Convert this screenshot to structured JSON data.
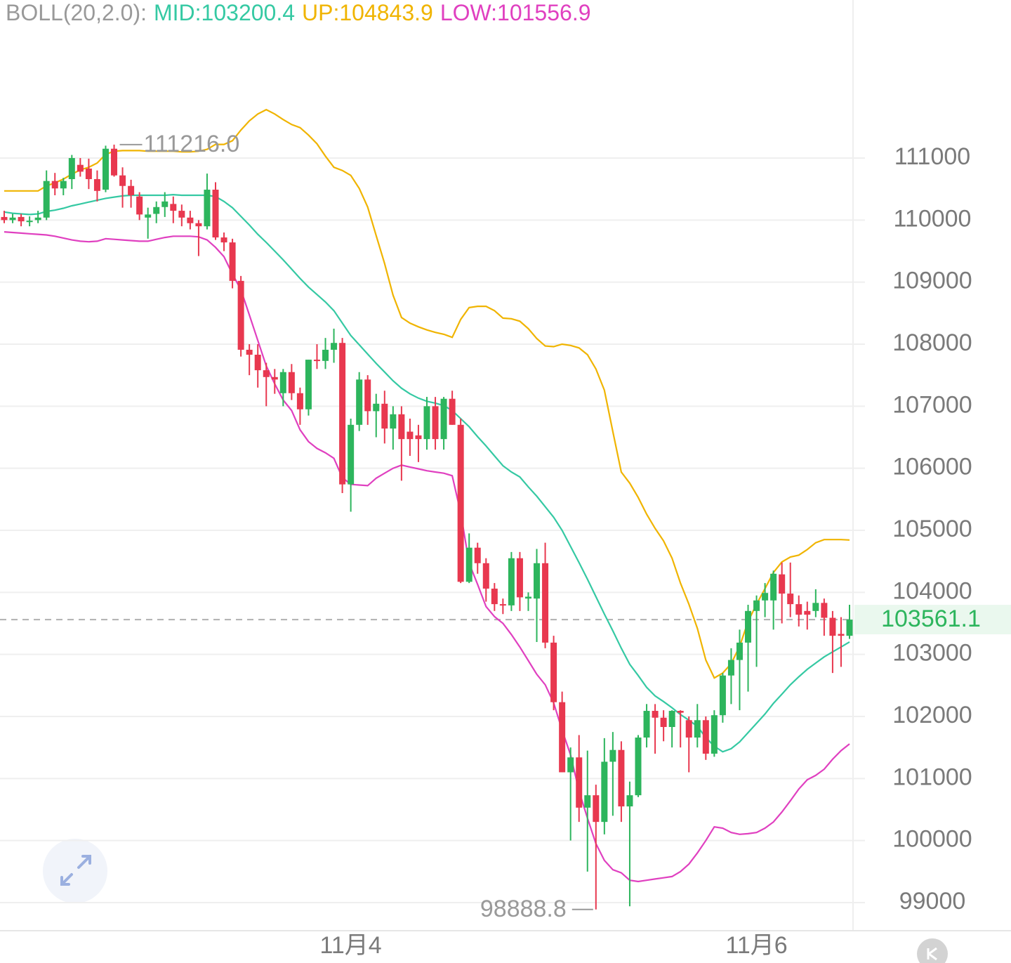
{
  "chart_data": {
    "type": "candlestick",
    "title": "BOLL(20,2.0):",
    "categories": [
      null,
      null,
      null,
      null,
      null,
      null,
      null,
      null,
      null,
      null,
      null,
      null,
      null,
      null,
      null,
      null,
      null,
      null,
      null,
      null,
      null,
      null,
      null,
      null,
      null,
      null,
      null,
      null,
      null,
      null,
      null,
      null,
      null,
      null,
      null,
      null,
      null,
      null,
      null,
      null,
      null,
      "11月4",
      null,
      null,
      null,
      null,
      null,
      null,
      null,
      null,
      null,
      null,
      null,
      null,
      null,
      null,
      null,
      null,
      null,
      null,
      null,
      null,
      null,
      null,
      null,
      null,
      null,
      null,
      null,
      null,
      null,
      null,
      null,
      null,
      null,
      null,
      null,
      null,
      null,
      null,
      null,
      null,
      null,
      null,
      null,
      null,
      null,
      null,
      null,
      "11月6",
      null,
      null,
      null,
      null,
      null,
      null,
      null,
      null,
      null,
      null,
      null
    ],
    "open": [
      110050,
      110000,
      110050,
      109980,
      110000,
      110040,
      110630,
      110510,
      110660,
      110890,
      110830,
      110660,
      110490,
      111150,
      110720,
      110550,
      110380,
      110040,
      110100,
      110210,
      110260,
      110150,
      110040,
      109950,
      109900,
      110490,
      109720,
      109640,
      109020,
      107910,
      107830,
      107580,
      107470,
      107210,
      107550,
      107210,
      106950,
      107750,
      107730,
      107910,
      108020,
      105740,
      106700,
      107430,
      106920,
      107040,
      106640,
      106870,
      106590,
      106530,
      106470,
      107000,
      106470,
      107120,
      106700,
      104170,
      104720,
      104470,
      104060,
      103810,
      103790,
      104550,
      103900,
      103900,
      104470,
      103190,
      102230,
      101100,
      101340,
      100530,
      100730,
      100300,
      101270,
      101460,
      100550,
      100730,
      101660,
      102090,
      101980,
      101830,
      102090,
      101940,
      101660,
      101940,
      101400,
      102020,
      102660,
      102910,
      103190,
      103700,
      103870,
      103870,
      104290,
      103980,
      103810,
      103700,
      103700,
      103830,
      103590,
      103330,
      103300
    ],
    "high": [
      110150,
      110100,
      110100,
      110060,
      110150,
      110800,
      110760,
      110680,
      111050,
      111000,
      110990,
      110800,
      111200,
      111216,
      110850,
      110650,
      110450,
      110200,
      110300,
      110450,
      110380,
      110250,
      110150,
      110000,
      110750,
      110610,
      109800,
      109700,
      109100,
      108000,
      108000,
      107700,
      107600,
      107600,
      107680,
      107300,
      107750,
      108000,
      108100,
      108250,
      108100,
      106800,
      107550,
      107500,
      107200,
      107250,
      107000,
      107000,
      106800,
      106700,
      107150,
      107150,
      107150,
      107250,
      106800,
      104950,
      104800,
      104550,
      104150,
      103900,
      104650,
      104650,
      104000,
      104700,
      104800,
      103300,
      102400,
      101500,
      101700,
      101450,
      100900,
      101650,
      101750,
      101600,
      100950,
      101700,
      102200,
      102200,
      102100,
      102100,
      102100,
      102000,
      102200,
      102000,
      102100,
      102700,
      103100,
      103400,
      103800,
      103950,
      104150,
      104350,
      104480,
      104480,
      103950,
      103850,
      104050,
      103900,
      103700,
      103600,
      103800
    ],
    "low": [
      109950,
      109950,
      109900,
      109900,
      109950,
      110000,
      110400,
      110400,
      110500,
      110700,
      110500,
      110300,
      110450,
      110700,
      110200,
      110200,
      110000,
      109700,
      109950,
      110050,
      109950,
      109900,
      109850,
      109420,
      109850,
      109680,
      109500,
      108900,
      107800,
      107500,
      107300,
      107000,
      107200,
      107000,
      107100,
      106700,
      106850,
      107600,
      107600,
      107700,
      105600,
      105300,
      106600,
      106700,
      106500,
      106400,
      106300,
      105800,
      106200,
      106100,
      106300,
      106300,
      106300,
      106700,
      104150,
      104150,
      104300,
      103850,
      103700,
      103650,
      103700,
      103700,
      103700,
      103200,
      103100,
      102100,
      101100,
      100000,
      100300,
      99500,
      98888.8,
      100100,
      100400,
      100300,
      98940,
      100700,
      101500,
      101400,
      101600,
      101500,
      101500,
      101100,
      101500,
      101300,
      101350,
      101900,
      102200,
      102100,
      102400,
      102800,
      103600,
      103400,
      103500,
      103600,
      103450,
      103400,
      103600,
      103300,
      102700,
      102800,
      103250
    ],
    "close": [
      110000,
      110040,
      109980,
      109990,
      110040,
      110630,
      110510,
      110630,
      111000,
      110780,
      110660,
      110470,
      111150,
      110720,
      110550,
      110400,
      110090,
      110090,
      110210,
      110300,
      110150,
      110040,
      109950,
      109900,
      110490,
      109720,
      109640,
      109020,
      107910,
      107830,
      107580,
      107470,
      107430,
      107550,
      107210,
      106950,
      107750,
      107730,
      107910,
      108020,
      105740,
      106700,
      107430,
      106920,
      107040,
      106640,
      106870,
      106470,
      106470,
      106470,
      107000,
      106470,
      107120,
      106700,
      104170,
      104720,
      104470,
      104060,
      103810,
      103790,
      104550,
      103920,
      103930,
      104470,
      103190,
      102230,
      101100,
      101340,
      100530,
      100730,
      100300,
      101270,
      101460,
      100550,
      100730,
      101660,
      102090,
      101980,
      101830,
      102090,
      102060,
      101660,
      101940,
      101400,
      102020,
      102660,
      102910,
      103190,
      103700,
      103870,
      103990,
      104300,
      103980,
      103810,
      103640,
      103640,
      103830,
      103590,
      103300,
      103300,
      103561.1
    ],
    "up_color": "#2db55d",
    "down_color": "#e8384f",
    "series": [
      {
        "name": "MID:103200.4",
        "color": "#35c9a3",
        "values": [
          110130,
          110110,
          110100,
          110090,
          110100,
          110140,
          110160,
          110190,
          110230,
          110260,
          110290,
          110320,
          110350,
          110370,
          110390,
          110400,
          110400,
          110400,
          110400,
          110400,
          110410,
          110400,
          110400,
          110400,
          110400,
          110380,
          110300,
          110200,
          110060,
          109920,
          109770,
          109640,
          109500,
          109360,
          109210,
          109060,
          108920,
          108800,
          108680,
          108540,
          108340,
          108140,
          107990,
          107840,
          107690,
          107550,
          107410,
          107290,
          107200,
          107130,
          107080,
          107050,
          107010,
          106930,
          106800,
          106670,
          106510,
          106360,
          106200,
          106040,
          105940,
          105860,
          105700,
          105550,
          105380,
          105210,
          105000,
          104740,
          104480,
          104210,
          103930,
          103650,
          103380,
          103100,
          102840,
          102660,
          102470,
          102330,
          102240,
          102140,
          102030,
          101940,
          101840,
          101660,
          101520,
          101430,
          101480,
          101590,
          101740,
          101890,
          102040,
          102210,
          102360,
          102510,
          102640,
          102760,
          102860,
          102960,
          103040,
          103120,
          103200.4
        ]
      },
      {
        "name": "UP:104843.9",
        "color": "#f0b400",
        "values": [
          110470,
          110470,
          110470,
          110470,
          110470,
          110550,
          110600,
          110660,
          110740,
          110810,
          110850,
          110920,
          111060,
          111110,
          111120,
          111120,
          111120,
          111110,
          111110,
          111110,
          111110,
          111100,
          111100,
          111110,
          111140,
          111220,
          111220,
          111280,
          111450,
          111600,
          111710,
          111780,
          111710,
          111620,
          111540,
          111490,
          111370,
          111230,
          111030,
          110850,
          110800,
          110720,
          110510,
          110210,
          109750,
          109300,
          108790,
          108430,
          108340,
          108280,
          108230,
          108190,
          108160,
          108110,
          108400,
          108590,
          108610,
          108610,
          108540,
          108420,
          108410,
          108370,
          108250,
          108090,
          107970,
          107960,
          108000,
          107980,
          107940,
          107830,
          107600,
          107260,
          106590,
          105940,
          105760,
          105530,
          105260,
          105030,
          104830,
          104550,
          104150,
          103810,
          103420,
          102910,
          102620,
          102700,
          102850,
          103130,
          103530,
          103810,
          104060,
          104320,
          104490,
          104570,
          104600,
          104690,
          104800,
          104850,
          104850,
          104850,
          104843.9
        ]
      },
      {
        "name": "LOW:101556.9",
        "color": "#e040c0",
        "values": [
          109810,
          109800,
          109790,
          109780,
          109770,
          109760,
          109740,
          109710,
          109680,
          109660,
          109650,
          109660,
          109700,
          109690,
          109680,
          109670,
          109660,
          109660,
          109690,
          109720,
          109740,
          109740,
          109740,
          109730,
          109680,
          109560,
          109410,
          109130,
          108880,
          108470,
          108060,
          107650,
          107360,
          107100,
          106930,
          106620,
          106430,
          106320,
          106250,
          106160,
          105850,
          105740,
          105730,
          105720,
          105840,
          105920,
          106000,
          106050,
          106020,
          105990,
          105960,
          105940,
          105920,
          105880,
          105280,
          104470,
          104130,
          103770,
          103610,
          103500,
          103320,
          103120,
          102900,
          102680,
          102510,
          102220,
          101780,
          101380,
          100800,
          100360,
          99950,
          99680,
          99530,
          99480,
          99360,
          99340,
          99360,
          99380,
          99400,
          99420,
          99500,
          99620,
          99800,
          100000,
          100220,
          100200,
          100130,
          100100,
          100110,
          100130,
          100200,
          100300,
          100460,
          100640,
          100830,
          100980,
          101050,
          101150,
          101310,
          101450,
          101556.9
        ]
      }
    ],
    "title_color": "#999999",
    "ylim": [
      98547,
      113547
    ],
    "yticks": [
      99000,
      100000,
      101000,
      102000,
      103000,
      104000,
      105000,
      106000,
      107000,
      108000,
      109000,
      110000,
      111000
    ],
    "grid": true,
    "last_price": 103561.1,
    "max_label": {
      "value": 111216,
      "label": "111216.0"
    },
    "min_label": {
      "value": 98888.8,
      "label": "98888.8"
    }
  }
}
